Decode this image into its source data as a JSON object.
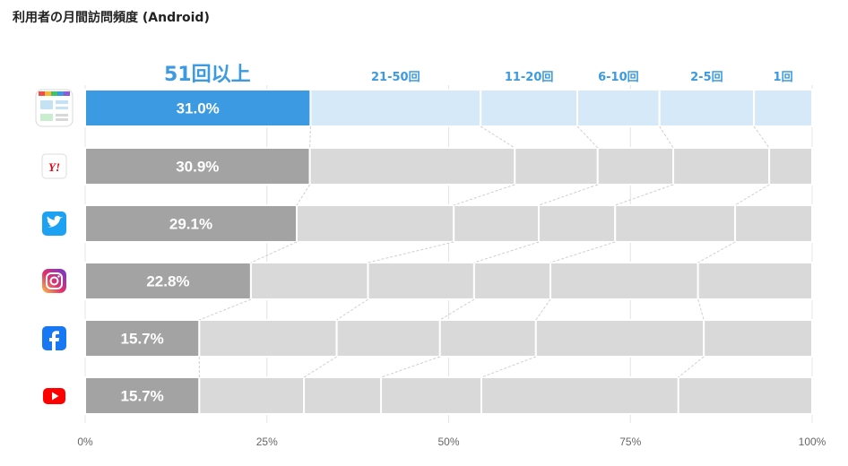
{
  "title": "利用者の月間訪問頻度 (Android)",
  "chart_data": {
    "type": "bar",
    "orientation": "horizontal",
    "stacked": true,
    "normalized": true,
    "title": "利用者の月間訪問頻度 (Android)",
    "series": [
      {
        "name": "51回以上",
        "values": [
          31.0,
          30.9,
          29.1,
          22.8,
          15.7,
          15.7
        ]
      },
      {
        "name": "21-50回",
        "values": [
          23.4,
          28.2,
          21.6,
          16.1,
          18.9,
          14.4
        ]
      },
      {
        "name": "11-20回",
        "values": [
          13.3,
          11.4,
          11.7,
          14.6,
          14.2,
          10.6
        ]
      },
      {
        "name": "6-10回",
        "values": [
          11.3,
          10.4,
          10.5,
          10.5,
          13.2,
          13.8
        ]
      },
      {
        "name": "2-5回",
        "values": [
          13.0,
          13.2,
          16.5,
          20.3,
          23.1,
          27.1
        ]
      },
      {
        "name": "1回",
        "values": [
          8.0,
          5.9,
          10.6,
          15.7,
          14.9,
          18.4
        ]
      }
    ],
    "categories": [
      "smartnews",
      "yahoo",
      "twitter",
      "instagram",
      "facebook",
      "youtube"
    ],
    "highlight_index": 0,
    "value_labels": [
      "31.0%",
      "30.9%",
      "29.1%",
      "22.8%",
      "15.7%",
      "15.7%"
    ],
    "xlim": [
      0,
      100
    ],
    "x_ticks": [
      "0%",
      "25%",
      "50%",
      "75%",
      "100%"
    ],
    "x_tick_values": [
      0,
      25,
      50,
      75,
      100
    ],
    "colors": {
      "highlight_first": "#3b9ae1",
      "highlight_rest": "#d6e9f8",
      "first": "#a3a3a3",
      "rest": "#d9d9d9",
      "label_accent": "#3b9ae1",
      "grid": "#e4e4e4",
      "connector": "#cfcfcf"
    }
  },
  "icons": [
    {
      "name": "smartnews-icon"
    },
    {
      "name": "yahoo-icon",
      "text": "Y!"
    },
    {
      "name": "twitter-icon"
    },
    {
      "name": "instagram-icon"
    },
    {
      "name": "facebook-icon"
    },
    {
      "name": "youtube-icon"
    }
  ]
}
